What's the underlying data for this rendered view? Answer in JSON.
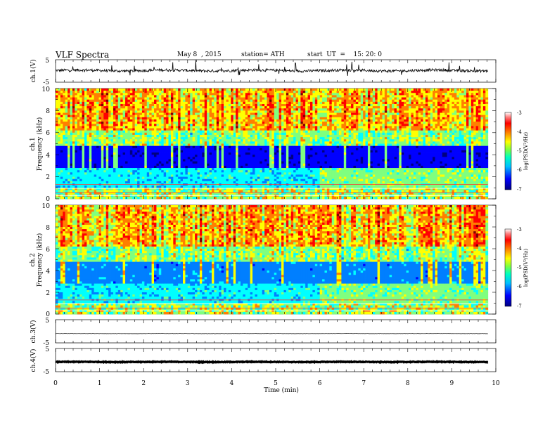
{
  "header": {
    "title": "VLF  Spectra",
    "date": "May 8  , 2015",
    "station": "station= ATH",
    "start": "start  UT  =    15: 20: 0"
  },
  "colors": {
    "jet": [
      "#00007f",
      "#0000ff",
      "#007fff",
      "#00ffff",
      "#7fff7f",
      "#ffff00",
      "#ff7f00",
      "#ff0000",
      "#7f0000",
      "#ffffff"
    ]
  },
  "chart_data": [
    {
      "type": "line",
      "ylabel": "ch.1(V)",
      "x_range": [
        0,
        10
      ],
      "ylim": [
        -5,
        5
      ],
      "y_ticks": [
        5,
        -5
      ],
      "trace_range_min": [
        0,
        9.82
      ],
      "baseline_v": 0.2,
      "noise_v": 0.6
    },
    {
      "type": "heatmap",
      "ylabel": "ch.1\nFrequency  (kHz)",
      "x_range": [
        0,
        10
      ],
      "ylim": [
        0,
        10
      ],
      "y_ticks": [
        0,
        2,
        4,
        6,
        8,
        10
      ],
      "colorbar": {
        "label": "log(PSD(V²/Hz)",
        "ticks": [
          -3,
          -4,
          -5,
          -6,
          -7
        ],
        "range": [
          -7,
          -3
        ]
      }
    },
    {
      "type": "heatmap",
      "ylabel": "ch.2\nFrequency  (kHz)",
      "x_range": [
        0,
        10
      ],
      "ylim": [
        0,
        10
      ],
      "y_ticks": [
        0,
        2,
        4,
        6,
        8,
        10
      ],
      "colorbar": {
        "label": "log(PSD(V²/Hz)",
        "ticks": [
          -3,
          -4,
          -5,
          -6,
          -7
        ],
        "range": [
          -7,
          -3
        ]
      }
    },
    {
      "type": "line",
      "ylabel": "ch.3(V)",
      "x_range": [
        0,
        10
      ],
      "ylim": [
        -5,
        5
      ],
      "y_ticks": [
        5,
        -5
      ],
      "trace_range_min": [
        0,
        9.82
      ],
      "baseline_v": -1.0,
      "noise_v": 0.05
    },
    {
      "type": "line",
      "ylabel": "ch.4(V)",
      "x_range": [
        0,
        10
      ],
      "ylim": [
        -5,
        5
      ],
      "y_ticks": [
        5,
        -5
      ],
      "trace_range_min": [
        0,
        9.82
      ],
      "baseline_v": -0.8,
      "noise_v": 0.15
    }
  ],
  "x_axis": {
    "label": "Time  (min)",
    "ticks": [
      "0",
      "1",
      "2",
      "3",
      "4",
      "5",
      "6",
      "7",
      "8",
      "9",
      "10"
    ]
  }
}
